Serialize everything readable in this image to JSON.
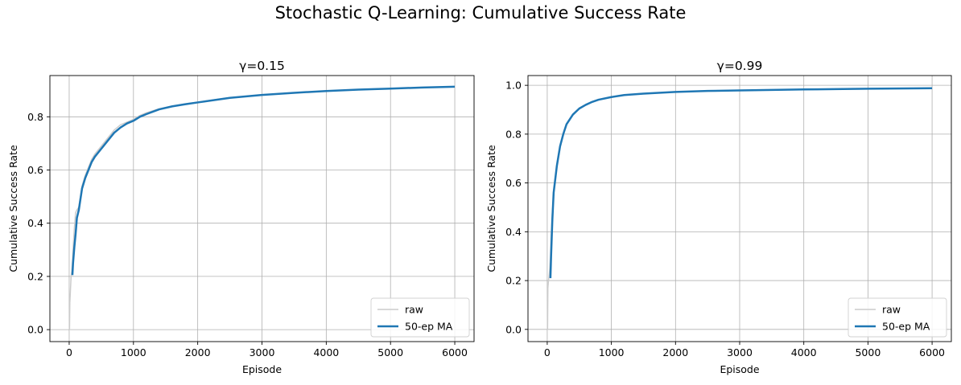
{
  "figure": {
    "suptitle": "Stochastic Q-Learning: Cumulative Success Rate"
  },
  "chart_data": [
    {
      "type": "line",
      "title": "γ=0.15",
      "xlabel": "Episode",
      "ylabel": "Cumulative Success Rate",
      "xlim": [
        -300,
        6300
      ],
      "ylim": [
        -0.045,
        0.955
      ],
      "xticks": [
        0,
        1000,
        2000,
        3000,
        4000,
        5000,
        6000
      ],
      "yticks": [
        0.0,
        0.2,
        0.4,
        0.6,
        0.8
      ],
      "ytick_labels": [
        "0.0",
        "0.2",
        "0.4",
        "0.6",
        "0.8"
      ],
      "grid": true,
      "legend": "lower-right",
      "series": [
        {
          "name": "raw",
          "color": "#cccccc",
          "x": [
            1,
            5,
            10,
            20,
            30,
            40,
            50,
            60,
            80,
            100,
            120,
            150,
            200,
            250,
            300,
            350,
            400,
            500,
            600,
            700,
            800,
            900,
            1000,
            1100,
            1200,
            1400,
            1600,
            1800,
            2000,
            2500,
            3000,
            3500,
            4000,
            4500,
            5000,
            5500,
            6000
          ],
          "y": [
            0.0,
            0.0,
            0.1,
            0.15,
            0.2,
            0.22,
            0.25,
            0.3,
            0.38,
            0.44,
            0.45,
            0.46,
            0.54,
            0.58,
            0.61,
            0.64,
            0.66,
            0.69,
            0.72,
            0.75,
            0.77,
            0.78,
            0.79,
            0.805,
            0.815,
            0.83,
            0.84,
            0.848,
            0.855,
            0.872,
            0.882,
            0.89,
            0.897,
            0.902,
            0.906,
            0.91,
            0.913
          ]
        },
        {
          "name": "50-ep MA",
          "color": "#1f77b4",
          "x": [
            50,
            60,
            80,
            100,
            120,
            150,
            200,
            250,
            300,
            350,
            400,
            500,
            600,
            700,
            800,
            900,
            1000,
            1100,
            1200,
            1400,
            1600,
            1800,
            2000,
            2500,
            3000,
            3500,
            4000,
            4500,
            5000,
            5500,
            6000
          ],
          "y": [
            0.205,
            0.25,
            0.31,
            0.36,
            0.42,
            0.45,
            0.53,
            0.57,
            0.6,
            0.63,
            0.65,
            0.68,
            0.71,
            0.74,
            0.76,
            0.775,
            0.785,
            0.8,
            0.81,
            0.828,
            0.839,
            0.847,
            0.854,
            0.871,
            0.882,
            0.89,
            0.897,
            0.902,
            0.906,
            0.91,
            0.913
          ]
        }
      ]
    },
    {
      "type": "line",
      "title": "γ=0.99",
      "xlabel": "Episode",
      "ylabel": "Cumulative Success Rate",
      "xlim": [
        -300,
        6300
      ],
      "ylim": [
        -0.05,
        1.04
      ],
      "xticks": [
        0,
        1000,
        2000,
        3000,
        4000,
        5000,
        6000
      ],
      "yticks": [
        0.0,
        0.2,
        0.4,
        0.6,
        0.8,
        1.0
      ],
      "ytick_labels": [
        "0.0",
        "0.2",
        "0.4",
        "0.6",
        "0.8",
        "1.0"
      ],
      "grid": true,
      "legend": "lower-right",
      "series": [
        {
          "name": "raw",
          "color": "#cccccc",
          "x": [
            1,
            5,
            10,
            20,
            30,
            40,
            50,
            60,
            80,
            100,
            150,
            200,
            250,
            300,
            400,
            500,
            600,
            700,
            800,
            1000,
            1200,
            1500,
            2000,
            2500,
            3000,
            4000,
            5000,
            6000
          ],
          "y": [
            0.0,
            0.0,
            0.17,
            0.2,
            0.22,
            0.25,
            0.3,
            0.38,
            0.48,
            0.56,
            0.67,
            0.75,
            0.8,
            0.84,
            0.88,
            0.905,
            0.92,
            0.932,
            0.941,
            0.952,
            0.96,
            0.966,
            0.973,
            0.977,
            0.979,
            0.983,
            0.986,
            0.988
          ]
        },
        {
          "name": "50-ep MA",
          "color": "#1f77b4",
          "x": [
            50,
            60,
            80,
            100,
            150,
            200,
            250,
            300,
            400,
            500,
            600,
            700,
            800,
            1000,
            1200,
            1500,
            2000,
            2500,
            3000,
            4000,
            5000,
            6000
          ],
          "y": [
            0.21,
            0.3,
            0.45,
            0.56,
            0.67,
            0.75,
            0.8,
            0.84,
            0.88,
            0.905,
            0.92,
            0.932,
            0.941,
            0.952,
            0.96,
            0.966,
            0.973,
            0.977,
            0.979,
            0.983,
            0.986,
            0.988
          ]
        }
      ]
    }
  ]
}
